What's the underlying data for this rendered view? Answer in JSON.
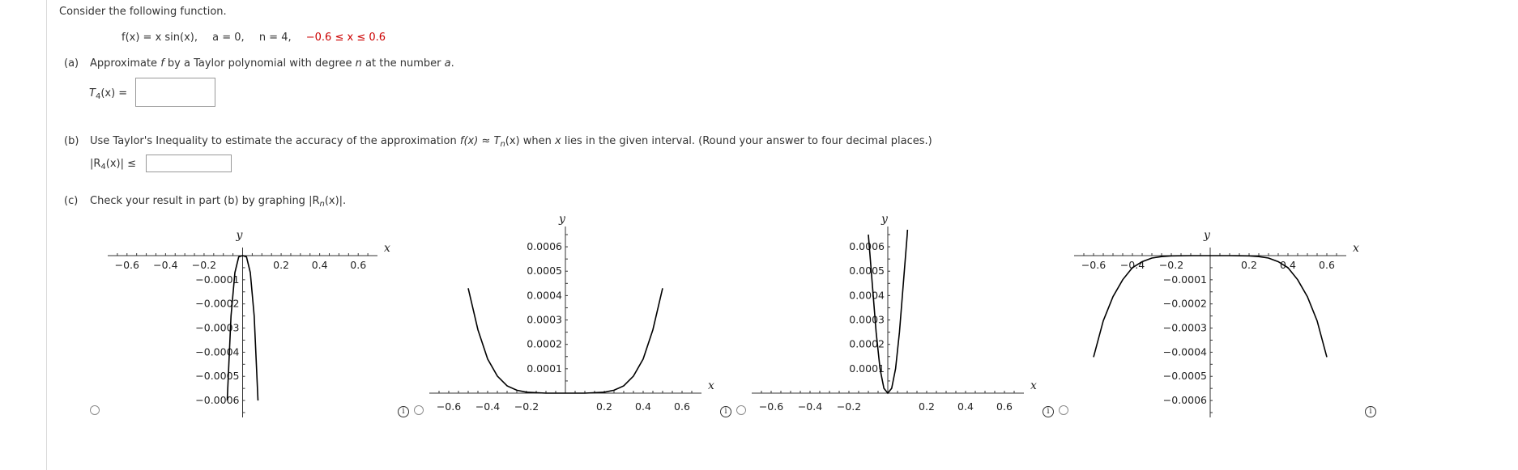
{
  "intro": "Consider the following function.",
  "function_line": {
    "fx": "f(x) = x sin(x),",
    "a": "a = 0,",
    "n": "n = 4,",
    "interval": "−0.6 ≤ x ≤ 0.6"
  },
  "part_a": {
    "label": "(a)",
    "text_pre": "Approximate ",
    "f": "f",
    "text_mid": " by a Taylor polynomial with degree ",
    "n": "n",
    "text_mid2": " at the number ",
    "a": "a",
    "text_end": ".",
    "answer_label_T": "T",
    "answer_label_sub": "4",
    "answer_label_rest": "(x) =",
    "answer_value": ""
  },
  "part_b": {
    "label": "(b)",
    "text_pre": "Use Taylor's Inequality to estimate the accuracy of the approximation ",
    "fx": "f(x)",
    "approx": " ≈ ",
    "T": "T",
    "Tsub": "n",
    "Tx": "(x)",
    "text_mid": " when ",
    "x": "x",
    "text_end": " lies in the given interval. (Round your answer to four decimal places.)",
    "answer_label_R": "|R",
    "answer_label_sub": "4",
    "answer_label_rest": "(x)| ≤",
    "answer_value": ""
  },
  "part_c": {
    "label": "(c)",
    "text_pre": "Check your result in part (b) by graphing ",
    "R": "|R",
    "Rsub": "n",
    "Rrest": "(x)|."
  },
  "info_glyph": "i",
  "chart_data": [
    {
      "type": "line",
      "xlabel": "x",
      "ylabel": "y",
      "xticks": [
        -0.6,
        -0.4,
        -0.2,
        0.2,
        0.4,
        0.6
      ],
      "xlim": [
        -0.7,
        0.7
      ],
      "ylim": [
        -0.00065,
        2e-05
      ],
      "yticks": [
        -0.0001,
        -0.0002,
        -0.0003,
        -0.0004,
        -0.0005,
        -0.0006
      ],
      "series": [
        {
          "x": [
            -0.08,
            -0.06,
            -0.04,
            -0.02,
            0,
            0.02,
            0.04,
            0.06,
            0.08
          ],
          "y": [
            -0.0006,
            -0.00025,
            -7e-05,
            -5e-06,
            0,
            -5e-06,
            -7e-05,
            -0.00025,
            -0.0006
          ]
        }
      ]
    },
    {
      "type": "line",
      "xlabel": "x",
      "ylabel": "y",
      "xticks": [
        -0.6,
        -0.4,
        -0.2,
        0.2,
        0.4,
        0.6
      ],
      "xlim": [
        -0.7,
        0.7
      ],
      "ylim": [
        -2e-05,
        0.00065
      ],
      "yticks": [
        0.0001,
        0.0002,
        0.0003,
        0.0004,
        0.0005,
        0.0006
      ],
      "series": [
        {
          "x": [
            -0.5,
            -0.45,
            -0.4,
            -0.35,
            -0.3,
            -0.25,
            -0.2,
            -0.1,
            0,
            0.1,
            0.2,
            0.25,
            0.3,
            0.35,
            0.4,
            0.45,
            0.5
          ],
          "y": [
            0.00043,
            0.00026,
            0.00014,
            7e-05,
            3e-05,
            1.2e-05,
            4e-06,
            0,
            0,
            0,
            4e-06,
            1.2e-05,
            3e-05,
            7e-05,
            0.00014,
            0.00026,
            0.00043
          ]
        }
      ]
    },
    {
      "type": "line",
      "xlabel": "x",
      "ylabel": "y",
      "xticks": [
        -0.6,
        -0.4,
        -0.2,
        0.2,
        0.4,
        0.6
      ],
      "xlim": [
        -0.7,
        0.7
      ],
      "ylim": [
        -2e-05,
        0.00065
      ],
      "yticks": [
        0.0001,
        0.0002,
        0.0003,
        0.0004,
        0.0005,
        0.0006
      ],
      "series": [
        {
          "x": [
            -0.1,
            -0.08,
            -0.06,
            -0.04,
            -0.02,
            0,
            0.02,
            0.04,
            0.06,
            0.08,
            0.1,
            0.12
          ],
          "y": [
            0.00065,
            0.00045,
            0.00025,
            0.0001,
            2e-05,
            0,
            2e-05,
            0.0001,
            0.00025,
            0.00045,
            0.00065,
            0.00095
          ]
        }
      ]
    },
    {
      "type": "line",
      "xlabel": "x",
      "ylabel": "y",
      "xticks": [
        -0.6,
        -0.4,
        -0.2,
        0.2,
        0.4,
        0.6
      ],
      "xlim": [
        -0.7,
        0.7
      ],
      "ylim": [
        -0.00065,
        2e-05
      ],
      "yticks": [
        -0.0001,
        -0.0002,
        -0.0003,
        -0.0004,
        -0.0005,
        -0.0006
      ],
      "series": [
        {
          "x": [
            -0.6,
            -0.55,
            -0.5,
            -0.45,
            -0.4,
            -0.35,
            -0.3,
            -0.25,
            -0.2,
            -0.1,
            0,
            0.1,
            0.2,
            0.25,
            0.3,
            0.35,
            0.4,
            0.45,
            0.5,
            0.55,
            0.6
          ],
          "y": [
            -0.00042,
            -0.00027,
            -0.00017,
            -0.0001,
            -5e-05,
            -2.5e-05,
            -1e-05,
            -4e-06,
            -1e-06,
            0,
            0,
            0,
            -1e-06,
            -4e-06,
            -1e-05,
            -2.5e-05,
            -5e-05,
            -0.0001,
            -0.00017,
            -0.00027,
            -0.00042
          ]
        }
      ]
    }
  ]
}
